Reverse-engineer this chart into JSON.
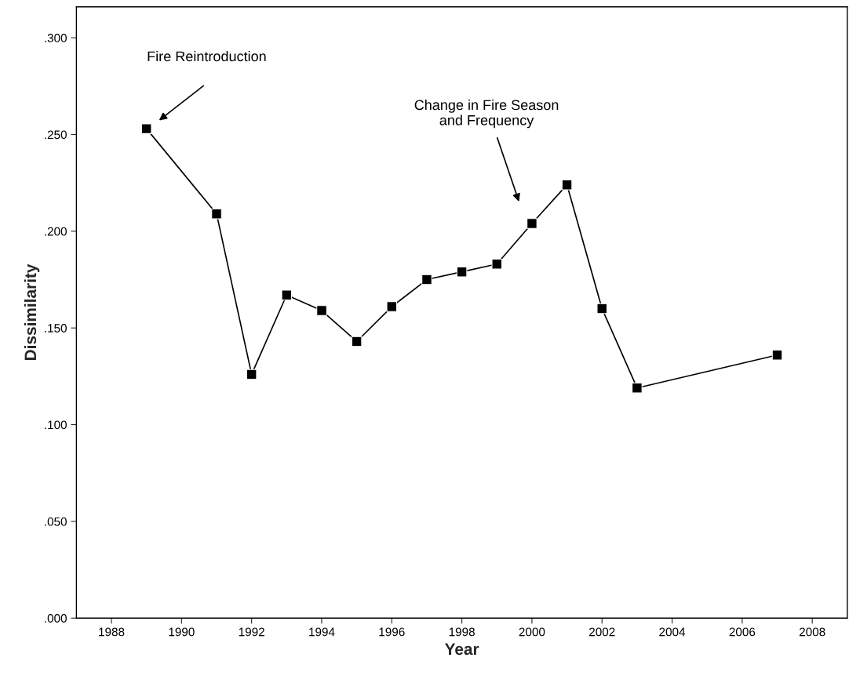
{
  "chart_data": {
    "type": "line",
    "xlabel": "Year",
    "ylabel": "Dissimilarity",
    "marker": "square",
    "line_style": "solid",
    "grid": false,
    "legend": false,
    "x": [
      1989,
      1991,
      1992,
      1993,
      1994,
      1995,
      1996,
      1997,
      1998,
      1999,
      2000,
      2001,
      2002,
      2003,
      2007
    ],
    "series": [
      {
        "color": "#000000",
        "values": [
          0.253,
          0.209,
          0.126,
          0.167,
          0.159,
          0.143,
          0.161,
          0.175,
          0.179,
          0.183,
          0.204,
          0.224,
          0.16,
          0.119,
          0.136
        ]
      }
    ],
    "xlim": [
      1987,
      2009
    ],
    "xticks": [
      1988,
      1990,
      1992,
      1994,
      1996,
      1998,
      2000,
      2002,
      2004,
      2006,
      2008
    ],
    "ylim": [
      0,
      0.316
    ],
    "yticks": [
      {
        "value": 0,
        "label": ".000"
      },
      {
        "value": 0.05,
        "label": ".050"
      },
      {
        "value": 0.1,
        "label": ".100"
      },
      {
        "value": 0.15,
        "label": ".150"
      },
      {
        "value": 0.2,
        "label": ".200"
      },
      {
        "value": 0.25,
        "label": ".250"
      },
      {
        "value": 0.3,
        "label": ".300"
      }
    ],
    "annotations": [
      "Fire Reintroduction",
      "Change in Fire Season\nand Frequency"
    ]
  }
}
